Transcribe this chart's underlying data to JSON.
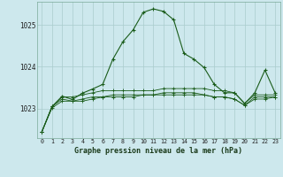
{
  "title": "Graphe pression niveau de la mer (hPa)",
  "bg_color": "#cde8ed",
  "grid_color": "#aacccc",
  "line_color": "#1a5c1a",
  "xlim": [
    -0.5,
    23.5
  ],
  "ylim": [
    1022.3,
    1025.55
  ],
  "yticks": [
    1023,
    1024,
    1025
  ],
  "xtick_labels": [
    "0",
    "1",
    "2",
    "3",
    "4",
    "5",
    "6",
    "7",
    "8",
    "9",
    "10",
    "11",
    "12",
    "13",
    "14",
    "15",
    "16",
    "17",
    "18",
    "19",
    "20",
    "21",
    "22",
    "23"
  ],
  "series1": [
    1022.45,
    1023.05,
    1023.3,
    1023.22,
    1023.37,
    1023.47,
    1023.58,
    1024.18,
    1024.6,
    1024.88,
    1025.3,
    1025.38,
    1025.32,
    1025.12,
    1024.32,
    1024.18,
    1023.98,
    1023.58,
    1023.38,
    1023.38,
    1023.12,
    1023.38,
    1023.92,
    1023.38
  ],
  "series2": [
    1022.45,
    1023.05,
    1023.28,
    1023.28,
    1023.33,
    1023.38,
    1023.43,
    1023.43,
    1023.43,
    1023.43,
    1023.43,
    1023.43,
    1023.48,
    1023.48,
    1023.48,
    1023.48,
    1023.48,
    1023.43,
    1023.43,
    1023.38,
    1023.13,
    1023.33,
    1023.33,
    1023.33
  ],
  "series3": [
    1022.45,
    1023.05,
    1023.23,
    1023.18,
    1023.23,
    1023.28,
    1023.28,
    1023.33,
    1023.33,
    1023.33,
    1023.33,
    1023.33,
    1023.38,
    1023.38,
    1023.38,
    1023.38,
    1023.33,
    1023.28,
    1023.28,
    1023.23,
    1023.08,
    1023.28,
    1023.28,
    1023.28
  ],
  "series4": [
    1022.45,
    1023.02,
    1023.18,
    1023.18,
    1023.18,
    1023.23,
    1023.28,
    1023.28,
    1023.28,
    1023.28,
    1023.33,
    1023.33,
    1023.33,
    1023.33,
    1023.33,
    1023.33,
    1023.33,
    1023.28,
    1023.28,
    1023.23,
    1023.08,
    1023.23,
    1023.23,
    1023.28
  ]
}
